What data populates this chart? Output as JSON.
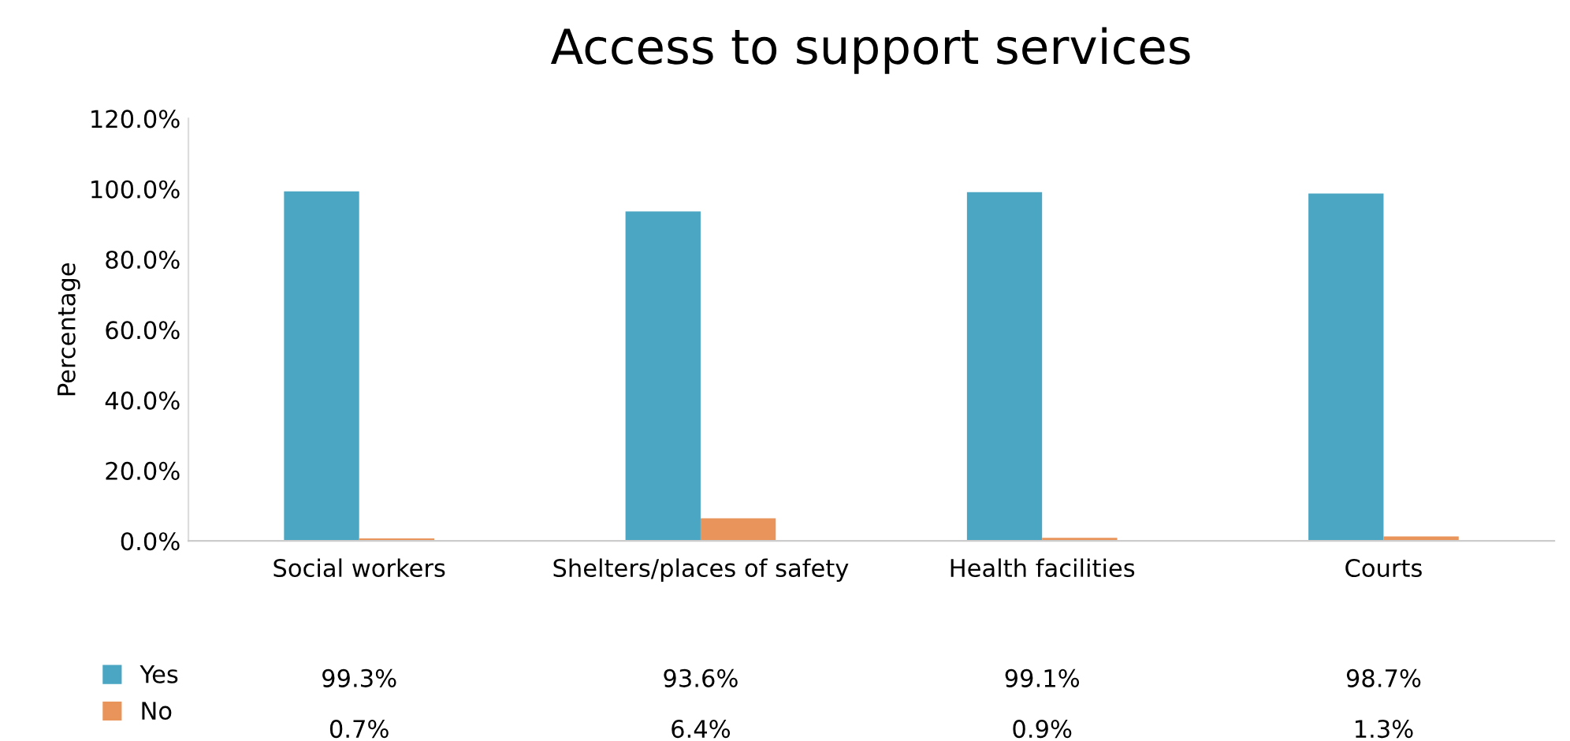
{
  "chart_data": {
    "type": "bar",
    "title": "Access to support services",
    "ylabel": "Percentage",
    "categories": [
      "Social workers",
      "Shelters/places of safety",
      "Health facilities",
      "Courts"
    ],
    "series": [
      {
        "name": "Yes",
        "color": "#4aa6c2",
        "values": [
          99.3,
          93.6,
          99.1,
          98.7
        ],
        "value_labels": [
          "99.3%",
          "93.6%",
          "99.1%",
          "98.7%"
        ]
      },
      {
        "name": "No",
        "color": "#e8945a",
        "values": [
          0.7,
          6.4,
          0.9,
          1.3
        ],
        "value_labels": [
          "0.7%",
          "6.4%",
          "0.9%",
          "1.3%"
        ]
      }
    ],
    "ylim": [
      0,
      120
    ],
    "yticks": [
      {
        "value": 0,
        "label": "0.0%"
      },
      {
        "value": 20,
        "label": "20.0%"
      },
      {
        "value": 40,
        "label": "40.0%"
      },
      {
        "value": 60,
        "label": "60.0%"
      },
      {
        "value": 80,
        "label": "80.0%"
      },
      {
        "value": 100,
        "label": "100.0%"
      },
      {
        "value": 120,
        "label": "120.0%"
      }
    ],
    "grid": false,
    "legend": "bottom left"
  }
}
